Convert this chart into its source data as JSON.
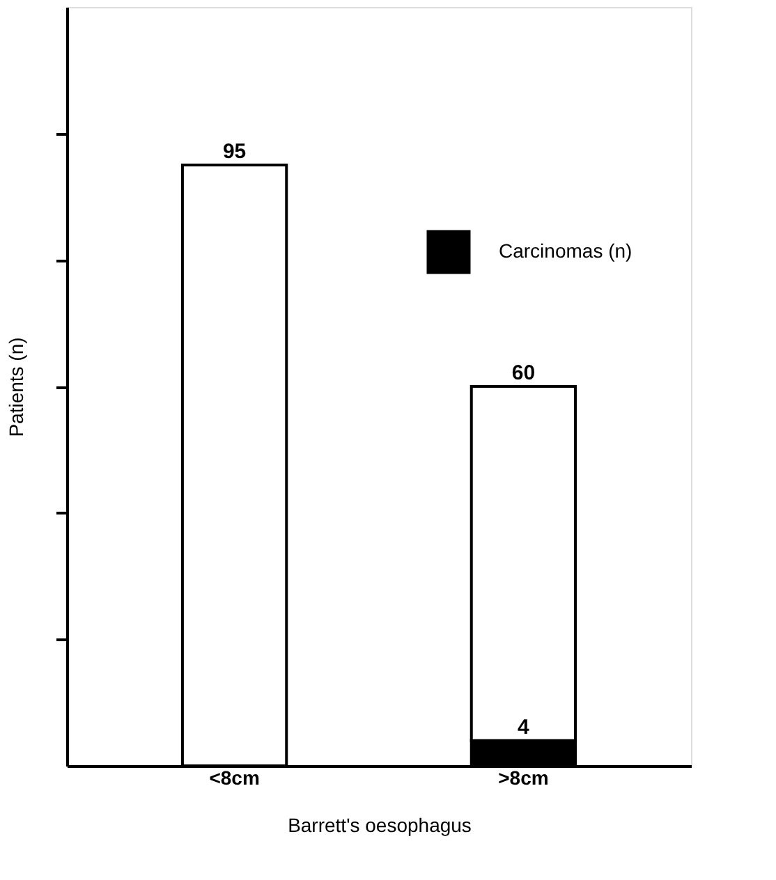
{
  "chart_data": {
    "type": "bar",
    "xlabel": "Barrett's oesophagus",
    "ylabel": "Patients (n)",
    "categories": [
      "<8cm",
      ">8cm"
    ],
    "stacked": true,
    "series": [
      {
        "name": "Carcinomas (n)",
        "color": "#000000",
        "values": [
          null,
          4
        ],
        "value_labels": [
          null,
          "4"
        ]
      },
      {
        "color": "#ffffff",
        "values": [
          95,
          56
        ]
      }
    ],
    "totals": [
      "95",
      "60"
    ],
    "ylim": [
      0,
      120
    ],
    "yticks": [
      {
        "value": 20,
        "label": null
      },
      {
        "value": 40,
        "label": null
      },
      {
        "value": 60,
        "label": null
      },
      {
        "value": 80,
        "label": null
      },
      {
        "value": 100,
        "label": null
      }
    ],
    "tick_labels": "x",
    "grid": false,
    "legend": "top right"
  }
}
